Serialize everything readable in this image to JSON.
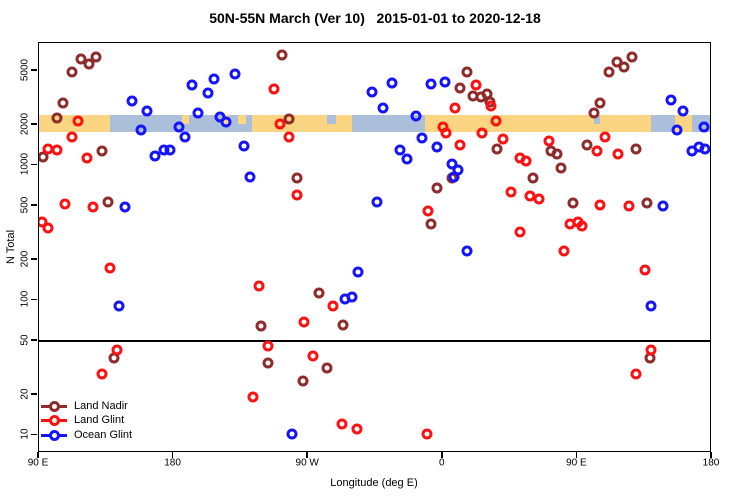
{
  "chart_data": {
    "type": "scatter",
    "title": "50N-55N March (Ver 10)   2015-01-01 to 2020-12-18",
    "xlabel": "Longitude (deg E)",
    "ylabel": "N Total",
    "x_axis": {
      "domain": [
        90,
        540
      ],
      "ticks": [
        {
          "value": 90,
          "label": "90 E"
        },
        {
          "value": 180,
          "label": "180"
        },
        {
          "value": 270,
          "label": "90 W"
        },
        {
          "value": 360,
          "label": "0"
        },
        {
          "value": 450,
          "label": "90 E"
        },
        {
          "value": 540,
          "label": "180"
        }
      ]
    },
    "y_axis": {
      "scale": "log",
      "domain": [
        7.4,
        8080
      ],
      "ticks": [
        {
          "value": 5000,
          "label": "5000"
        },
        {
          "value": 2000,
          "label": "2000"
        },
        {
          "value": 1000,
          "label": "1000"
        },
        {
          "value": 500,
          "label": "500"
        },
        {
          "value": 200,
          "label": "200"
        },
        {
          "value": 100,
          "label": "100"
        },
        {
          "value": 50,
          "label": "50"
        },
        {
          "value": 20,
          "label": "20"
        },
        {
          "value": 10,
          "label": "10"
        }
      ]
    },
    "reference_line_y": 50,
    "map_strip": {
      "description": "land/ocean surface band along longitude, centered at N=2000",
      "center_value": 2000,
      "land_color": "#FBD581",
      "ocean_color": "#ABBEDA",
      "segments": [
        {
          "from": 90,
          "to": 138,
          "surface": "land"
        },
        {
          "from": 138,
          "to": 233,
          "surface": "ocean"
        },
        {
          "from": 233,
          "to": 300,
          "surface": "land"
        },
        {
          "from": 300,
          "to": 349,
          "surface": "ocean"
        },
        {
          "from": 349,
          "to": 500,
          "surface": "land"
        },
        {
          "from": 500,
          "to": 516,
          "surface": "ocean"
        },
        {
          "from": 516,
          "to": 527,
          "surface": "land"
        },
        {
          "from": 527,
          "to": 540,
          "surface": "ocean"
        }
      ],
      "patches": [
        {
          "from": 186,
          "to": 191,
          "surface": "land",
          "half": "top"
        },
        {
          "from": 214,
          "to": 218,
          "surface": "land",
          "half": "top"
        },
        {
          "from": 224,
          "to": 229,
          "surface": "land",
          "half": "top"
        },
        {
          "from": 283,
          "to": 289,
          "surface": "ocean",
          "half": "top"
        },
        {
          "from": 462,
          "to": 466,
          "surface": "ocean",
          "half": "top"
        }
      ]
    },
    "legend": {
      "position": "bottom-left",
      "entries": [
        {
          "name": "Land Nadir",
          "color": "#8F2B2B"
        },
        {
          "name": "Land Glint",
          "color": "#FF1111"
        },
        {
          "name": "Ocean Glint",
          "color": "#1414FF"
        }
      ]
    },
    "series": [
      {
        "name": "Land Nadir",
        "color": "#8F2B2B",
        "points": [
          [
            113,
            4800
          ],
          [
            119,
            6000
          ],
          [
            124,
            5500
          ],
          [
            129,
            6300
          ],
          [
            253,
            6500
          ],
          [
            107,
            2850
          ],
          [
            103,
            2200
          ],
          [
            93.5,
            1140
          ],
          [
            133,
            1250
          ],
          [
            137,
            530
          ],
          [
            258,
            2170
          ],
          [
            263,
            790
          ],
          [
            377,
            4800
          ],
          [
            372,
            3700
          ],
          [
            381,
            3200
          ],
          [
            386,
            3150
          ],
          [
            390,
            3300
          ],
          [
            392,
            2900
          ],
          [
            466,
            2860
          ],
          [
            462,
            2400
          ],
          [
            472,
            4800
          ],
          [
            477,
            5700
          ],
          [
            482,
            5300
          ],
          [
            487,
            6300
          ],
          [
            457,
            1400
          ],
          [
            490,
            1300
          ],
          [
            397,
            1300
          ],
          [
            440,
            940
          ],
          [
            421,
            790
          ],
          [
            357,
            670
          ],
          [
            367,
            790
          ],
          [
            448,
            520
          ],
          [
            497,
            520
          ],
          [
            353,
            360
          ],
          [
            433,
            1260
          ],
          [
            437,
            1200
          ],
          [
            141,
            37
          ],
          [
            239,
            64
          ],
          [
            244,
            34
          ],
          [
            278,
            112
          ],
          [
            267,
            25
          ],
          [
            283,
            31
          ],
          [
            294,
            65
          ],
          [
            499,
            37
          ]
        ]
      },
      {
        "name": "Land Glint",
        "color": "#FF1111",
        "points": [
          [
            117,
            2100
          ],
          [
            113,
            1600
          ],
          [
            97,
            1300
          ],
          [
            103,
            1280
          ],
          [
            123,
            1120
          ],
          [
            108,
            510
          ],
          [
            127,
            480
          ],
          [
            93,
            375
          ],
          [
            97,
            340
          ],
          [
            248,
            3600
          ],
          [
            252,
            2000
          ],
          [
            258,
            1600
          ],
          [
            263,
            590
          ],
          [
            383,
            3900
          ],
          [
            369,
            2600
          ],
          [
            361,
            1900
          ],
          [
            363,
            1710
          ],
          [
            372,
            1400
          ],
          [
            393,
            2700
          ],
          [
            396,
            2100
          ],
          [
            387,
            1700
          ],
          [
            401,
            1550
          ],
          [
            432,
            1500
          ],
          [
            412,
            1120
          ],
          [
            416,
            1060
          ],
          [
            469,
            1600
          ],
          [
            464,
            1250
          ],
          [
            478,
            1200
          ],
          [
            406,
            625
          ],
          [
            419,
            585
          ],
          [
            425,
            555
          ],
          [
            466,
            500
          ],
          [
            485,
            490
          ],
          [
            351,
            450
          ],
          [
            446,
            360
          ],
          [
            451,
            375
          ],
          [
            454,
            350
          ],
          [
            412,
            315
          ],
          [
            442,
            230
          ],
          [
            138,
            170
          ],
          [
            143,
            42
          ],
          [
            133,
            28
          ],
          [
            238,
            125
          ],
          [
            244,
            45
          ],
          [
            234,
            19
          ],
          [
            268,
            68
          ],
          [
            274,
            38
          ],
          [
            287,
            90
          ],
          [
            293,
            12
          ],
          [
            303,
            11
          ],
          [
            350,
            10
          ],
          [
            496,
            165
          ],
          [
            500,
            42
          ],
          [
            490,
            28
          ]
        ]
      },
      {
        "name": "Ocean Glint",
        "color": "#1414FF",
        "points": [
          [
            148,
            480
          ],
          [
            193,
            3900
          ],
          [
            208,
            4300
          ],
          [
            204,
            3400
          ],
          [
            222,
            4700
          ],
          [
            153,
            2950
          ],
          [
            163,
            2500
          ],
          [
            159,
            1800
          ],
          [
            184,
            1900
          ],
          [
            188,
            1600
          ],
          [
            197,
            2400
          ],
          [
            212,
            2250
          ],
          [
            216,
            2050
          ],
          [
            228,
            1370
          ],
          [
            168,
            1160
          ],
          [
            174,
            1280
          ],
          [
            178,
            1280
          ],
          [
            232,
            810
          ],
          [
            313,
            3450
          ],
          [
            327,
            4000
          ],
          [
            321,
            2600
          ],
          [
            343,
            2300
          ],
          [
            353,
            3950
          ],
          [
            362,
            4100
          ],
          [
            347,
            1570
          ],
          [
            357,
            1350
          ],
          [
            367,
            1010
          ],
          [
            371,
            910
          ],
          [
            368,
            810
          ],
          [
            337,
            1100
          ],
          [
            332,
            1280
          ],
          [
            317,
            530
          ],
          [
            508,
            490
          ],
          [
            377,
            230
          ],
          [
            513,
            3000
          ],
          [
            521,
            2500
          ],
          [
            517,
            1800
          ],
          [
            527,
            1250
          ],
          [
            532,
            1350
          ],
          [
            536,
            1300
          ],
          [
            535,
            1900
          ],
          [
            144,
            90
          ],
          [
            304,
            160
          ],
          [
            295,
            100
          ],
          [
            300,
            105
          ],
          [
            260,
            10
          ],
          [
            500,
            90
          ]
        ]
      }
    ]
  }
}
